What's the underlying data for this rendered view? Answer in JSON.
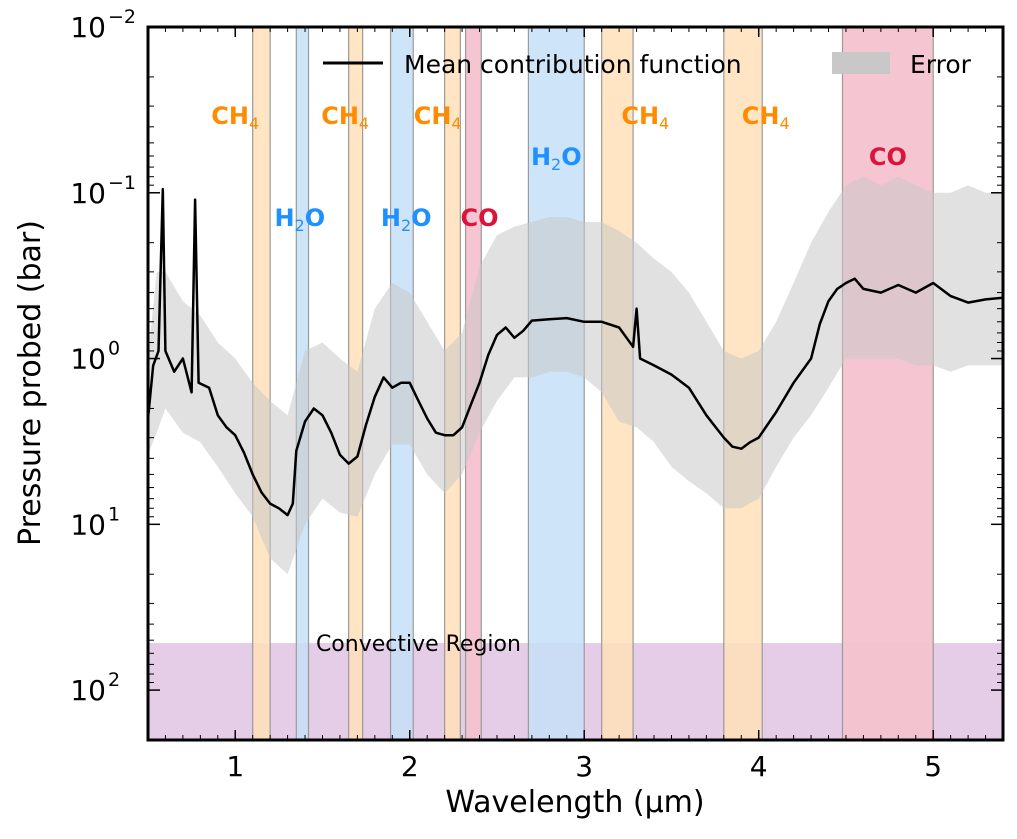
{
  "chart_data": {
    "type": "line",
    "title": "",
    "xlabel": "Wavelength (μm)",
    "ylabel": "Pressure probed (bar)",
    "xlim": [
      0.5,
      5.4
    ],
    "ylim": [
      0.01,
      200
    ],
    "yscale": "log",
    "y_inverted": true,
    "grid": false,
    "legend_position": "top",
    "legend": {
      "line_label": "Mean contribution function",
      "band_label": "Error"
    },
    "x_ticks": [
      {
        "value": 1,
        "label": "1"
      },
      {
        "value": 2,
        "label": "2"
      },
      {
        "value": 3,
        "label": "3"
      },
      {
        "value": 4,
        "label": "4"
      },
      {
        "value": 5,
        "label": "5"
      }
    ],
    "y_ticks": [
      {
        "value": 0.01,
        "base": "10",
        "exp": "−2"
      },
      {
        "value": 0.1,
        "base": "10",
        "exp": "−1"
      },
      {
        "value": 1,
        "base": "10",
        "exp": "0"
      },
      {
        "value": 10,
        "base": "10",
        "exp": "1"
      },
      {
        "value": 100,
        "base": "10",
        "exp": "2"
      }
    ],
    "convective_region": {
      "label": "Convective Region",
      "p_top": 52,
      "p_bottom": 200,
      "color": "#e2c8e6"
    },
    "colors": {
      "CH4": "#ffe0b8",
      "H2O": "#c6dff7",
      "CO": "#f4c2cf",
      "CH4_text": "#ff8c00",
      "H2O_text": "#1e90ff",
      "CO_text": "#dc143c",
      "line": "#000000",
      "error": "#c8c8c8"
    },
    "bands": [
      {
        "species": "CH4",
        "x0": 1.1,
        "x1": 1.2,
        "label": "CH",
        "sub": "4",
        "lx": 1.0,
        "lp": 0.034
      },
      {
        "species": "H2O",
        "x0": 1.35,
        "x1": 1.42,
        "label": "H",
        "sub": "2",
        "suffix": "O",
        "lx": 1.37,
        "lp": 0.14
      },
      {
        "species": "CH4",
        "x0": 1.65,
        "x1": 1.73,
        "label": "CH",
        "sub": "4",
        "lx": 1.63,
        "lp": 0.034
      },
      {
        "species": "H2O",
        "x0": 1.89,
        "x1": 2.02,
        "label": "H",
        "sub": "2",
        "suffix": "O",
        "lx": 1.98,
        "lp": 0.14
      },
      {
        "species": "CH4",
        "x0": 2.2,
        "x1": 2.29,
        "label": "CH",
        "sub": "4",
        "lx": 2.16,
        "lp": 0.034
      },
      {
        "species": "CO",
        "x0": 2.32,
        "x1": 2.41,
        "label": "CO",
        "lx": 2.4,
        "lp": 0.14
      },
      {
        "species": "H2O",
        "x0": 2.68,
        "x1": 3.0,
        "label": "H",
        "sub": "2",
        "suffix": "O",
        "lx": 2.84,
        "lp": 0.06
      },
      {
        "species": "CH4",
        "x0": 3.1,
        "x1": 3.28,
        "label": "CH",
        "sub": "4",
        "lx": 3.35,
        "lp": 0.034
      },
      {
        "species": "CH4",
        "x0": 3.8,
        "x1": 4.02,
        "label": "CH",
        "sub": "4",
        "lx": 4.04,
        "lp": 0.034
      },
      {
        "species": "CO",
        "x0": 4.48,
        "x1": 5.0,
        "label": "CO",
        "lx": 4.74,
        "lp": 0.06
      }
    ],
    "mean_curve": [
      [
        0.5,
        2.3
      ],
      [
        0.53,
        1.1
      ],
      [
        0.56,
        0.9
      ],
      [
        0.585,
        0.095
      ],
      [
        0.6,
        0.9
      ],
      [
        0.65,
        1.2
      ],
      [
        0.7,
        1.0
      ],
      [
        0.75,
        1.6
      ],
      [
        0.77,
        0.11
      ],
      [
        0.79,
        1.4
      ],
      [
        0.85,
        1.5
      ],
      [
        0.9,
        2.2
      ],
      [
        0.95,
        2.6
      ],
      [
        1.0,
        2.9
      ],
      [
        1.05,
        3.7
      ],
      [
        1.1,
        5.0
      ],
      [
        1.15,
        6.4
      ],
      [
        1.2,
        7.5
      ],
      [
        1.25,
        8.0
      ],
      [
        1.3,
        8.8
      ],
      [
        1.33,
        7.5
      ],
      [
        1.35,
        3.6
      ],
      [
        1.4,
        2.4
      ],
      [
        1.45,
        2.0
      ],
      [
        1.5,
        2.2
      ],
      [
        1.55,
        2.8
      ],
      [
        1.6,
        3.8
      ],
      [
        1.65,
        4.3
      ],
      [
        1.7,
        3.9
      ],
      [
        1.75,
        2.5
      ],
      [
        1.8,
        1.7
      ],
      [
        1.85,
        1.3
      ],
      [
        1.9,
        1.5
      ],
      [
        1.95,
        1.4
      ],
      [
        2.0,
        1.4
      ],
      [
        2.05,
        1.8
      ],
      [
        2.1,
        2.3
      ],
      [
        2.15,
        2.8
      ],
      [
        2.2,
        2.9
      ],
      [
        2.25,
        2.9
      ],
      [
        2.3,
        2.6
      ],
      [
        2.35,
        1.9
      ],
      [
        2.4,
        1.4
      ],
      [
        2.45,
        0.95
      ],
      [
        2.5,
        0.72
      ],
      [
        2.55,
        0.65
      ],
      [
        2.6,
        0.75
      ],
      [
        2.65,
        0.68
      ],
      [
        2.7,
        0.59
      ],
      [
        2.8,
        0.58
      ],
      [
        2.9,
        0.57
      ],
      [
        3.0,
        0.6
      ],
      [
        3.1,
        0.6
      ],
      [
        3.2,
        0.65
      ],
      [
        3.28,
        0.85
      ],
      [
        3.3,
        0.5
      ],
      [
        3.32,
        1.0
      ],
      [
        3.4,
        1.1
      ],
      [
        3.5,
        1.25
      ],
      [
        3.6,
        1.5
      ],
      [
        3.7,
        2.2
      ],
      [
        3.8,
        3.0
      ],
      [
        3.85,
        3.4
      ],
      [
        3.9,
        3.5
      ],
      [
        3.95,
        3.2
      ],
      [
        4.0,
        3.0
      ],
      [
        4.1,
        2.1
      ],
      [
        4.2,
        1.4
      ],
      [
        4.3,
        1.0
      ],
      [
        4.35,
        0.62
      ],
      [
        4.4,
        0.45
      ],
      [
        4.45,
        0.38
      ],
      [
        4.5,
        0.35
      ],
      [
        4.55,
        0.33
      ],
      [
        4.6,
        0.38
      ],
      [
        4.7,
        0.4
      ],
      [
        4.8,
        0.36
      ],
      [
        4.9,
        0.4
      ],
      [
        5.0,
        0.35
      ],
      [
        5.1,
        0.42
      ],
      [
        5.2,
        0.46
      ],
      [
        5.3,
        0.44
      ],
      [
        5.4,
        0.43
      ]
    ],
    "error_band": [
      [
        0.5,
        1.0,
        3.8
      ],
      [
        0.55,
        0.3,
        2.8
      ],
      [
        0.6,
        0.3,
        2.0
      ],
      [
        0.7,
        0.45,
        2.8
      ],
      [
        0.8,
        0.55,
        3.2
      ],
      [
        0.9,
        0.8,
        4.5
      ],
      [
        1.0,
        1.0,
        6.5
      ],
      [
        1.1,
        1.4,
        9.0
      ],
      [
        1.2,
        1.8,
        16
      ],
      [
        1.3,
        2.2,
        20
      ],
      [
        1.4,
        0.9,
        10
      ],
      [
        1.5,
        0.8,
        7.0
      ],
      [
        1.6,
        1.0,
        8.5
      ],
      [
        1.7,
        1.2,
        9.0
      ],
      [
        1.8,
        0.5,
        5.0
      ],
      [
        1.9,
        0.35,
        3.3
      ],
      [
        2.0,
        0.4,
        3.3
      ],
      [
        2.1,
        0.6,
        5.0
      ],
      [
        2.2,
        0.9,
        6.5
      ],
      [
        2.3,
        0.7,
        5.0
      ],
      [
        2.4,
        0.28,
        2.8
      ],
      [
        2.5,
        0.18,
        1.8
      ],
      [
        2.6,
        0.16,
        1.3
      ],
      [
        2.7,
        0.15,
        1.3
      ],
      [
        2.8,
        0.14,
        1.2
      ],
      [
        2.9,
        0.14,
        1.2
      ],
      [
        3.0,
        0.15,
        1.3
      ],
      [
        3.1,
        0.15,
        1.6
      ],
      [
        3.2,
        0.17,
        2.4
      ],
      [
        3.3,
        0.2,
        2.6
      ],
      [
        3.4,
        0.25,
        3.2
      ],
      [
        3.5,
        0.3,
        4.5
      ],
      [
        3.6,
        0.4,
        5.5
      ],
      [
        3.7,
        0.6,
        6.5
      ],
      [
        3.8,
        0.9,
        8.0
      ],
      [
        3.9,
        1.0,
        8.0
      ],
      [
        4.0,
        0.9,
        7.0
      ],
      [
        4.1,
        0.6,
        4.5
      ],
      [
        4.2,
        0.35,
        3.0
      ],
      [
        4.3,
        0.2,
        2.2
      ],
      [
        4.4,
        0.13,
        1.5
      ],
      [
        4.5,
        0.09,
        1.0
      ],
      [
        4.6,
        0.08,
        1.0
      ],
      [
        4.7,
        0.09,
        1.0
      ],
      [
        4.8,
        0.08,
        1.0
      ],
      [
        4.9,
        0.09,
        1.1
      ],
      [
        5.0,
        0.1,
        1.1
      ],
      [
        5.1,
        0.1,
        1.2
      ],
      [
        5.2,
        0.09,
        1.1
      ],
      [
        5.3,
        0.1,
        1.1
      ],
      [
        5.4,
        0.1,
        1.1
      ]
    ]
  }
}
